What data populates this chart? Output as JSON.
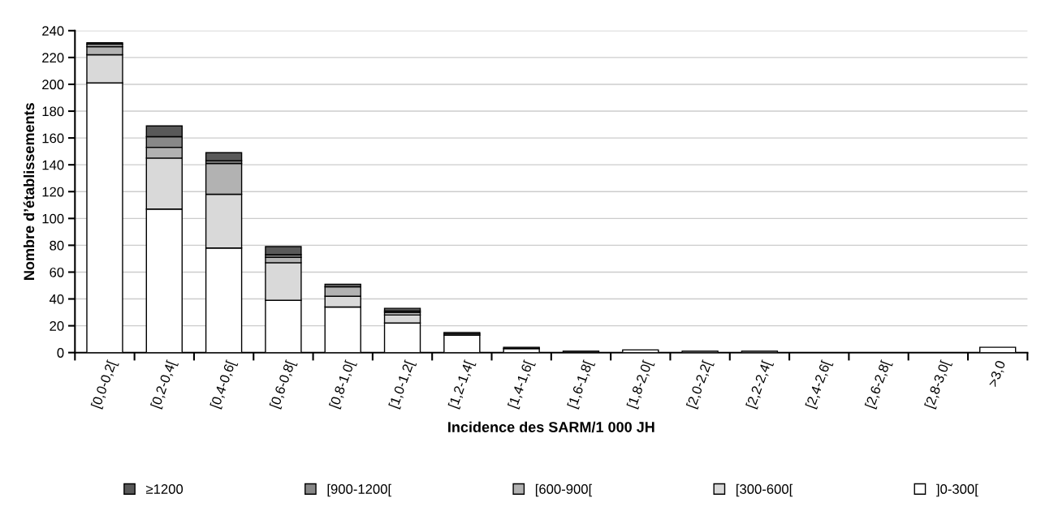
{
  "chart_data": {
    "type": "bar",
    "stacked": true,
    "xlabel": "Incidence des SARM/1 000 JH",
    "ylabel": "Nombre d’établissements",
    "categories": [
      "[0,0-0,2[",
      "[0,2-0,4[",
      "[0,4-0,6[",
      "[0,6-0,8[",
      "[0,8-1,0[",
      "[1,0-1,2[",
      "[1,2-1,4[",
      "[1,4-1,6[",
      "[1,6-1,8[",
      "[1,8-2,0[",
      "[2,0-2,2[",
      "[2,2-2,4[",
      "[2,4-2,6[",
      "[2,6-2,8[",
      "[2,8-3,0[",
      ">3,0"
    ],
    "series": [
      {
        "name": "]0-300[",
        "color": "#ffffff",
        "values": [
          201,
          107,
          78,
          39,
          34,
          22,
          13,
          3,
          0,
          2,
          1,
          1,
          0,
          0,
          0,
          4
        ]
      },
      {
        "name": "[300-600[",
        "color": "#d9d9d9",
        "values": [
          21,
          38,
          40,
          28,
          8,
          6,
          1,
          0,
          0,
          0,
          0,
          0,
          0,
          0,
          0,
          0
        ]
      },
      {
        "name": "[600-900[",
        "color": "#b2b2b2",
        "values": [
          6,
          8,
          23,
          4,
          7,
          2,
          1,
          0,
          0,
          0,
          0,
          0,
          0,
          0,
          0,
          0
        ]
      },
      {
        "name": "[900-1200[",
        "color": "#888888",
        "values": [
          2,
          8,
          2,
          2,
          null,
          1,
          0,
          0,
          0,
          0,
          0,
          0,
          0,
          0,
          0,
          0
        ]
      },
      {
        "name": "≥1200",
        "color": "#595959",
        "values": [
          1,
          8,
          6,
          6,
          2,
          2,
          0,
          1,
          1,
          0,
          0,
          0,
          0,
          0,
          0,
          0
        ]
      }
    ],
    "ylim": [
      0,
      240
    ],
    "yticks": [
      0,
      20,
      40,
      60,
      80,
      100,
      120,
      140,
      160,
      180,
      200,
      220,
      240
    ],
    "grid": "y",
    "legend": "bottom"
  }
}
